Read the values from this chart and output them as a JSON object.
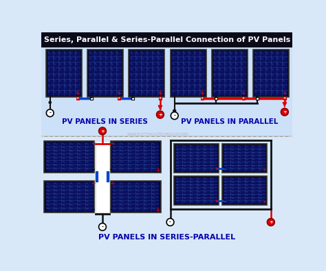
{
  "title": "Series, Parallel & Series-Parallel Connection of PV Panels",
  "title_color": "#ffffff",
  "title_bg": "#0a0a1a",
  "bg_color": "#d8e8f8",
  "panel_color_dark": "#0a1060",
  "panel_color_mid": "#1428a0",
  "panel_grid": "#4060c0",
  "panel_border": "#000000",
  "wire_red": "#dd0000",
  "wire_blue": "#0044cc",
  "wire_black": "#111111",
  "label_series": "PV PANELS IN SERIES",
  "label_parallel": "PV PANELS IN PARALLEL",
  "label_series_parallel": "PV PANELS IN SERIES-PARALLEL",
  "watermark": "WWW.ELECTRICALTECHNOLOGY.ORG",
  "section_divider_color": "#999999",
  "plus_color": "#dd0000",
  "minus_color": "#000000",
  "label_color": "#0000aa"
}
